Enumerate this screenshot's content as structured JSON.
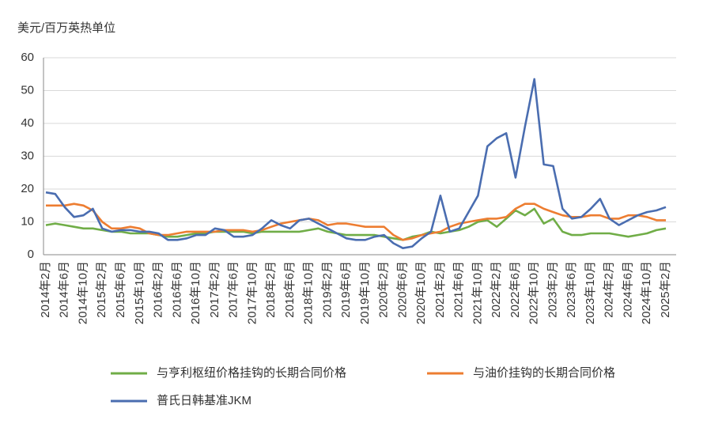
{
  "chart_data": {
    "type": "line",
    "y_axis_label": "美元/百万英热单位",
    "categories": [
      "2014年2月",
      null,
      "2014年6月",
      null,
      "2014年10月",
      null,
      "2015年2月",
      null,
      "2015年6月",
      null,
      "2015年10月",
      null,
      "2016年2月",
      null,
      "2016年6月",
      null,
      "2016年10月",
      null,
      "2017年2月",
      null,
      "2017年6月",
      null,
      "2017年10月",
      null,
      "2018年2月",
      null,
      "2018年6月",
      null,
      "2018年10月",
      null,
      "2019年2月",
      null,
      "2019年6月",
      null,
      "2019年10月",
      null,
      "2020年2月",
      null,
      "2020年6月",
      null,
      "2020年10月",
      null,
      "2021年2月",
      null,
      "2021年6月",
      null,
      "2021年10月",
      null,
      "2022年2月",
      null,
      "2022年6月",
      null,
      "2022年10月",
      null,
      "2023年2月",
      null,
      "2023年6月",
      null,
      "2023年10月",
      null,
      "2024年2月",
      null,
      "2024年6月",
      null,
      "2024年10月",
      null,
      "2025年2月"
    ],
    "series": [
      {
        "name": "与亨利枢纽价格挂钩的长期合同价格",
        "color": "#70ad47",
        "values": [
          9,
          9.5,
          9,
          8.5,
          8,
          8,
          7.5,
          7,
          7,
          6.5,
          6.5,
          6.5,
          6,
          5.5,
          5.5,
          6,
          6.5,
          6.5,
          7,
          7,
          7,
          7,
          6.5,
          7,
          7,
          7,
          7,
          7,
          7.5,
          8,
          7,
          6.5,
          6,
          6,
          6,
          6,
          5.5,
          5,
          4.5,
          5.5,
          6,
          7,
          6.5,
          7,
          7.5,
          8.5,
          10,
          10.5,
          8.5,
          11,
          13.5,
          12,
          14,
          9.5,
          11,
          7,
          6,
          6,
          6.5,
          6.5,
          6.5,
          6,
          5.5,
          6,
          6.5,
          7.5,
          8
        ]
      },
      {
        "name": "与油价挂钩的长期合同价格",
        "color": "#ed7d31",
        "values": [
          15,
          15,
          15,
          15.5,
          15,
          13.5,
          10,
          8,
          8,
          8.5,
          8,
          6.5,
          6,
          6,
          6.5,
          7,
          7,
          7,
          7,
          7.5,
          7.5,
          7.5,
          7,
          7.5,
          8.5,
          9.5,
          10,
          10.5,
          11,
          10.5,
          9,
          9.5,
          9.5,
          9,
          8.5,
          8.5,
          8.5,
          6,
          4.5,
          5,
          6,
          6.5,
          7,
          8.5,
          9.5,
          10,
          10.5,
          11,
          11,
          11.5,
          14,
          15.5,
          15.5,
          14,
          13,
          12,
          11.5,
          11.5,
          12,
          12,
          11,
          11,
          12,
          12,
          11.5,
          10.5,
          10.5
        ]
      },
      {
        "name": "普氏日韩基准JKM",
        "color": "#4a6db0",
        "values": [
          19,
          18.5,
          14.5,
          11.5,
          12,
          14,
          8,
          7,
          7.5,
          7.5,
          7,
          7,
          6.5,
          4.5,
          4.5,
          5,
          6,
          6,
          8,
          7.5,
          5.5,
          5.5,
          6,
          8,
          10.5,
          9,
          8,
          10.5,
          11,
          9.5,
          8,
          6.5,
          5,
          4.5,
          4.5,
          5.5,
          6,
          3.5,
          2,
          2.5,
          5,
          7,
          18,
          7,
          8,
          13,
          18,
          33,
          35.5,
          37,
          23.5,
          39,
          53.5,
          27.5,
          27,
          14,
          11,
          11.5,
          14,
          17,
          11,
          9,
          10.5,
          12,
          13,
          13.5,
          14.5
        ]
      }
    ],
    "ylim": [
      0,
      60
    ],
    "yticks": [
      0,
      10,
      20,
      30,
      40,
      50,
      60
    ],
    "grid": true
  }
}
